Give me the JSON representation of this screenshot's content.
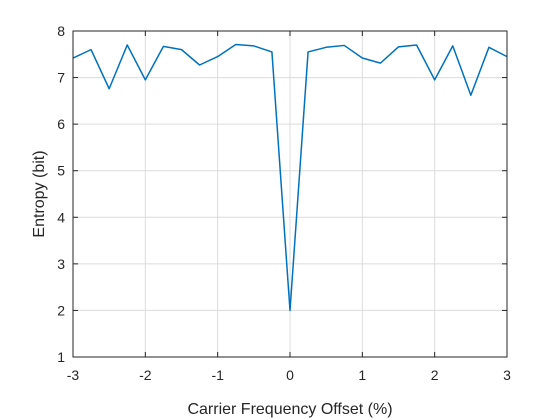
{
  "chart_data": {
    "type": "line",
    "title": "",
    "xlabel": "Carrier Frequency Offset (%)",
    "ylabel": "Entropy (bit)",
    "xlim": [
      -3,
      3
    ],
    "ylim": [
      1,
      8
    ],
    "xticks": [
      -3,
      -2,
      -1,
      0,
      1,
      2,
      3
    ],
    "yticks": [
      1,
      2,
      3,
      4,
      5,
      6,
      7,
      8
    ],
    "grid": true,
    "legend": "none",
    "series": [
      {
        "color": "#0072BD",
        "x": [
          -3,
          -2.75,
          -2.5,
          -2.25,
          -2,
          -1.75,
          -1.5,
          -1.25,
          -1,
          -0.75,
          -0.5,
          -0.25,
          0,
          0.25,
          0.5,
          0.75,
          1,
          1.25,
          1.5,
          1.75,
          2,
          2.25,
          2.5,
          2.75,
          3
        ],
        "y": [
          7.42,
          7.6,
          6.76,
          7.7,
          6.95,
          7.67,
          7.6,
          7.27,
          7.45,
          7.71,
          7.68,
          7.55,
          2.0,
          7.55,
          7.65,
          7.69,
          7.42,
          7.31,
          7.66,
          7.7,
          6.95,
          7.68,
          6.62,
          7.65,
          7.45
        ]
      }
    ]
  }
}
